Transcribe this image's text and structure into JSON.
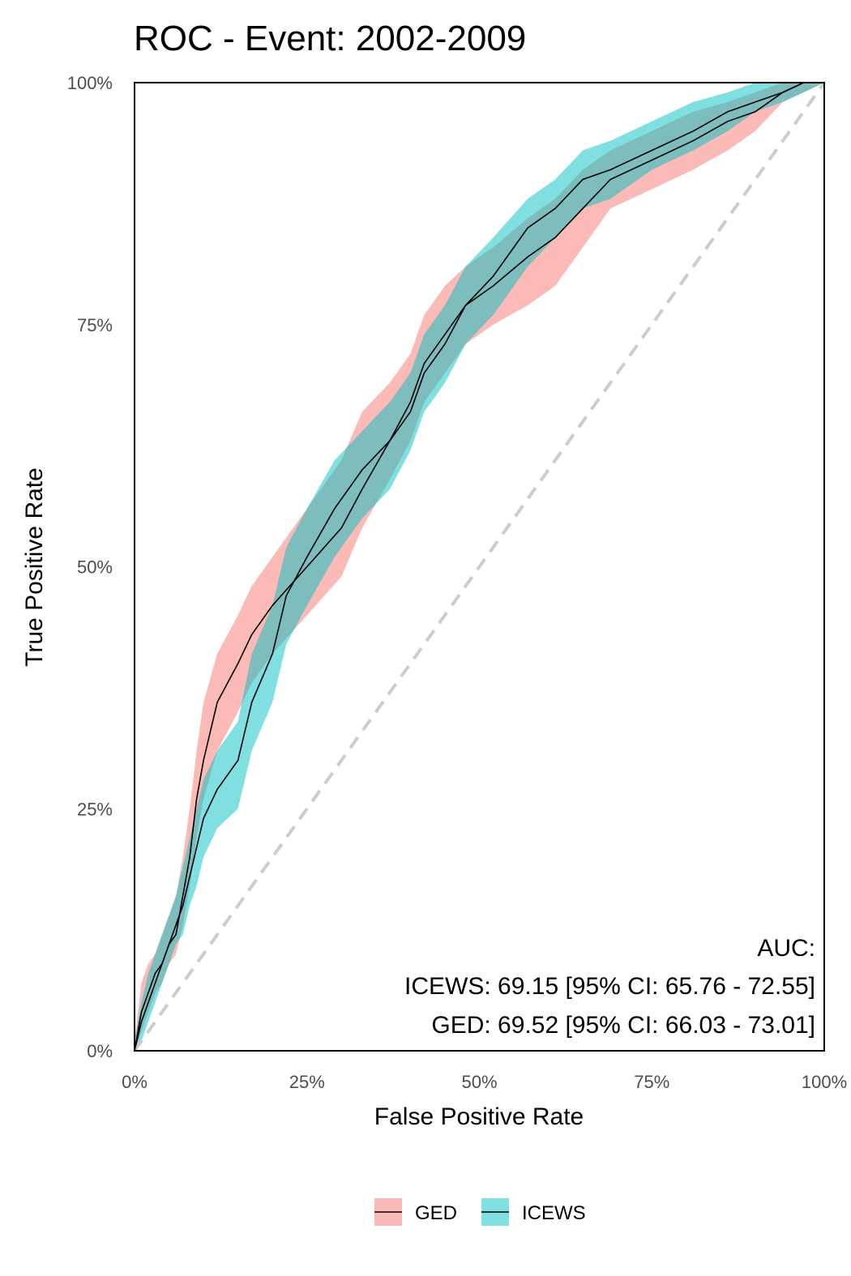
{
  "chart_data": {
    "type": "line",
    "title": "ROC - Event: 2002-2009",
    "xlabel": "False Positive Rate",
    "ylabel": "True Positive Rate",
    "xlim": [
      0,
      1
    ],
    "ylim": [
      0,
      1
    ],
    "x_ticks": [
      0,
      0.25,
      0.5,
      0.75,
      1
    ],
    "x_tick_labels": [
      "0%",
      "25%",
      "50%",
      "75%",
      "100%"
    ],
    "y_ticks": [
      0,
      0.25,
      0.5,
      0.75,
      1
    ],
    "y_tick_labels": [
      "0%",
      "25%",
      "50%",
      "75%",
      "100%"
    ],
    "grid": false,
    "legend_position": "bottom",
    "reference_line": {
      "x": [
        0,
        1
      ],
      "y": [
        0,
        1
      ],
      "color": "#cccccc",
      "style": "dashed"
    },
    "annotation": [
      "AUC:",
      "ICEWS: 69.15 [95% CI: 65.76 - 72.55]",
      "GED: 69.52 [95% CI: 66.03 - 73.01]"
    ],
    "series": [
      {
        "name": "GED",
        "fill_color": "#F8766D",
        "line_color": "#000000",
        "x": [
          0,
          0.01,
          0.02,
          0.03,
          0.04,
          0.05,
          0.06,
          0.07,
          0.08,
          0.09,
          0.1,
          0.12,
          0.15,
          0.17,
          0.2,
          0.25,
          0.3,
          0.33,
          0.37,
          0.4,
          0.42,
          0.45,
          0.48,
          0.52,
          0.57,
          0.61,
          0.65,
          0.69,
          0.75,
          0.81,
          0.86,
          0.9,
          0.94,
          0.97,
          1.0
        ],
        "y": [
          0,
          0.04,
          0.06,
          0.08,
          0.09,
          0.11,
          0.12,
          0.16,
          0.2,
          0.26,
          0.3,
          0.36,
          0.4,
          0.43,
          0.46,
          0.5,
          0.54,
          0.58,
          0.63,
          0.67,
          0.71,
          0.74,
          0.77,
          0.79,
          0.82,
          0.84,
          0.87,
          0.9,
          0.92,
          0.94,
          0.96,
          0.97,
          0.99,
          1.0,
          1.0
        ],
        "lower": [
          0,
          0.02,
          0.04,
          0.06,
          0.07,
          0.09,
          0.1,
          0.13,
          0.17,
          0.22,
          0.26,
          0.31,
          0.35,
          0.38,
          0.41,
          0.45,
          0.49,
          0.54,
          0.59,
          0.63,
          0.67,
          0.7,
          0.73,
          0.75,
          0.77,
          0.79,
          0.83,
          0.87,
          0.89,
          0.91,
          0.93,
          0.95,
          0.98,
          0.99,
          1.0
        ],
        "upper": [
          0.01,
          0.07,
          0.09,
          0.1,
          0.12,
          0.14,
          0.16,
          0.2,
          0.25,
          0.31,
          0.36,
          0.41,
          0.45,
          0.48,
          0.51,
          0.56,
          0.61,
          0.66,
          0.69,
          0.72,
          0.76,
          0.79,
          0.81,
          0.83,
          0.86,
          0.88,
          0.91,
          0.93,
          0.95,
          0.97,
          0.98,
          0.99,
          1.0,
          1.0,
          1.0
        ]
      },
      {
        "name": "ICEWS",
        "fill_color": "#00BFC4",
        "line_color": "#000000",
        "x": [
          0,
          0.01,
          0.02,
          0.03,
          0.04,
          0.05,
          0.06,
          0.07,
          0.08,
          0.09,
          0.1,
          0.12,
          0.15,
          0.17,
          0.2,
          0.22,
          0.25,
          0.29,
          0.33,
          0.37,
          0.4,
          0.42,
          0.45,
          0.48,
          0.52,
          0.57,
          0.61,
          0.65,
          0.69,
          0.75,
          0.81,
          0.86,
          0.9,
          0.94,
          0.97,
          1.0
        ],
        "y": [
          0,
          0.03,
          0.05,
          0.07,
          0.09,
          0.11,
          0.13,
          0.15,
          0.18,
          0.21,
          0.24,
          0.27,
          0.3,
          0.36,
          0.41,
          0.47,
          0.51,
          0.56,
          0.6,
          0.63,
          0.66,
          0.7,
          0.73,
          0.77,
          0.8,
          0.85,
          0.87,
          0.9,
          0.91,
          0.93,
          0.95,
          0.97,
          0.98,
          0.99,
          1.0,
          1.0
        ],
        "lower": [
          0,
          0.01,
          0.03,
          0.05,
          0.07,
          0.09,
          0.11,
          0.12,
          0.15,
          0.17,
          0.2,
          0.23,
          0.25,
          0.31,
          0.36,
          0.42,
          0.46,
          0.51,
          0.55,
          0.58,
          0.62,
          0.66,
          0.69,
          0.73,
          0.76,
          0.81,
          0.84,
          0.87,
          0.88,
          0.91,
          0.93,
          0.95,
          0.97,
          0.98,
          0.99,
          1.0
        ],
        "upper": [
          0.01,
          0.05,
          0.08,
          0.1,
          0.12,
          0.14,
          0.16,
          0.19,
          0.22,
          0.25,
          0.28,
          0.31,
          0.34,
          0.41,
          0.46,
          0.52,
          0.56,
          0.61,
          0.64,
          0.67,
          0.7,
          0.74,
          0.77,
          0.81,
          0.84,
          0.88,
          0.9,
          0.93,
          0.94,
          0.96,
          0.98,
          0.99,
          1.0,
          1.0,
          1.0,
          1.0
        ]
      }
    ]
  }
}
